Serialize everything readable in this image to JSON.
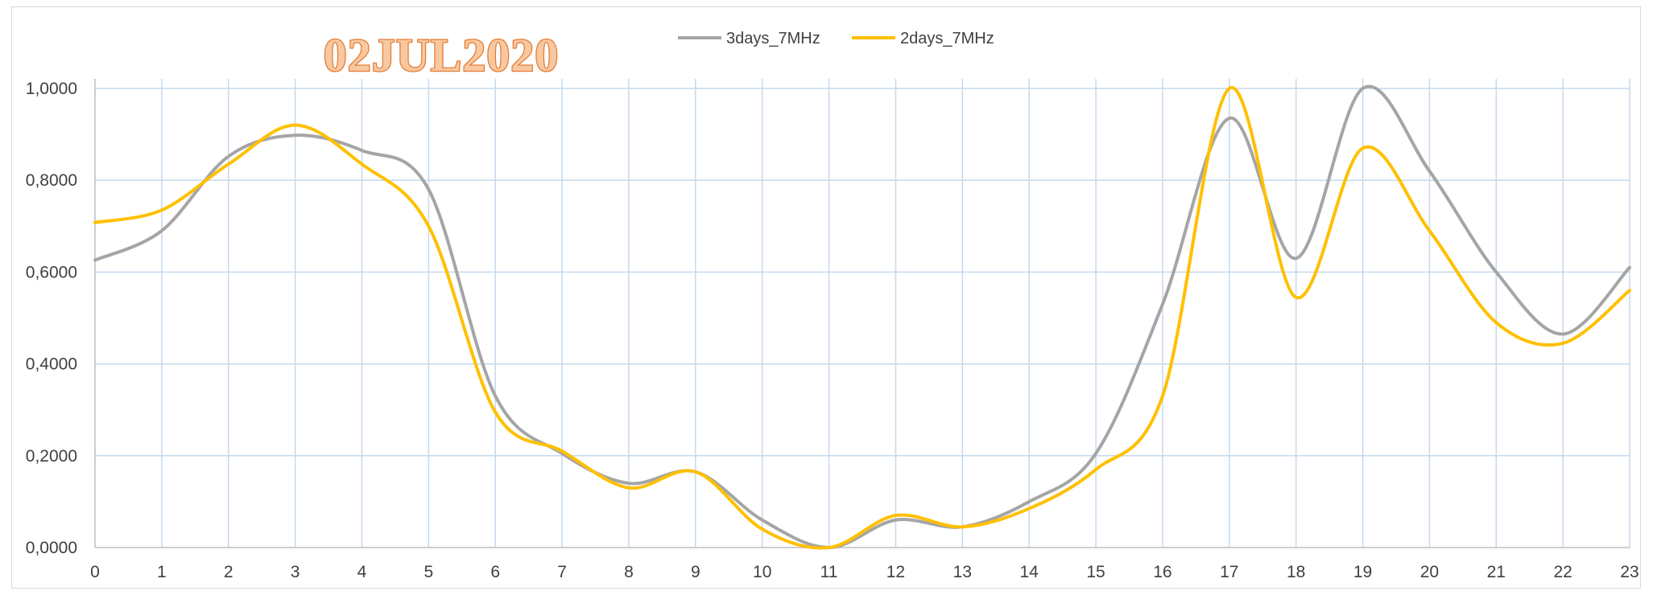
{
  "chart_data": {
    "type": "line",
    "title": "02JUL2020",
    "xlabel": "",
    "ylabel": "",
    "x": [
      0,
      1,
      2,
      3,
      4,
      5,
      6,
      7,
      8,
      9,
      10,
      11,
      12,
      13,
      14,
      15,
      16,
      17,
      18,
      19,
      20,
      21,
      22,
      23
    ],
    "xlim": [
      0,
      23
    ],
    "ylim": [
      0,
      1
    ],
    "yticks": [
      0,
      0.2,
      0.4,
      0.6,
      0.8,
      1.0
    ],
    "ytick_labels": [
      "0,0000",
      "0,2000",
      "0,4000",
      "0,6000",
      "0,8000",
      "1,0000"
    ],
    "xtick_labels": [
      "0",
      "1",
      "2",
      "3",
      "4",
      "5",
      "6",
      "7",
      "8",
      "9",
      "10",
      "11",
      "12",
      "13",
      "14",
      "15",
      "16",
      "17",
      "18",
      "19",
      "20",
      "21",
      "22",
      "23"
    ],
    "grid": true,
    "smooth": true,
    "legend": "top-center",
    "series": [
      {
        "name": "3days_7MHz",
        "color": "#a5a5a5",
        "values": [
          0.626,
          0.69,
          0.852,
          0.898,
          0.865,
          0.78,
          0.33,
          0.205,
          0.14,
          0.165,
          0.06,
          0.0,
          0.06,
          0.045,
          0.1,
          0.205,
          0.53,
          0.935,
          0.63,
          1.0,
          0.82,
          0.6,
          0.465,
          0.61
        ]
      },
      {
        "name": "2days_7MHz",
        "color": "#ffc000",
        "values": [
          0.708,
          0.735,
          0.835,
          0.92,
          0.835,
          0.7,
          0.295,
          0.21,
          0.13,
          0.165,
          0.04,
          0.0,
          0.07,
          0.045,
          0.085,
          0.17,
          0.33,
          1.0,
          0.545,
          0.87,
          0.69,
          0.49,
          0.445,
          0.56
        ]
      }
    ]
  }
}
